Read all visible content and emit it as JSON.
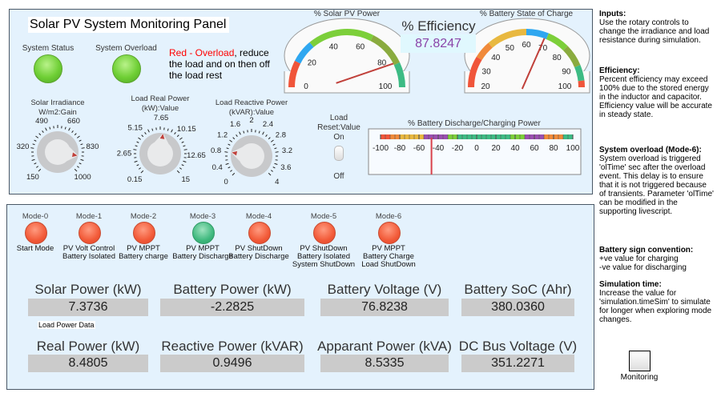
{
  "top_panel": {
    "title": "Solar PV System Monitoring Panel",
    "system_status_label": "System Status",
    "system_overload_label": "System Overload",
    "overload_hint_red": "Red - Overload",
    "overload_hint_rest": ",  reduce the load and on then off the load rest",
    "system_status_color": "green",
    "system_overload_color": "green",
    "knobs": [
      {
        "title": "Solar Irradiance W/m2:Gain",
        "labels": [
          "150",
          "320",
          "490",
          "660",
          "830",
          "1000"
        ],
        "min": 150,
        "max": 1000,
        "value": 890
      },
      {
        "title": "Load Real Power (kW):Value",
        "labels": [
          "0.15",
          "2.65",
          "5.15",
          "7.65",
          "10.15",
          "12.65",
          "15"
        ],
        "min": 0.15,
        "max": 15,
        "value": 8.0
      },
      {
        "title": "Load Reactive Power (kVAR):Value",
        "labels": [
          "0",
          "0.4",
          "0.8",
          "1.2",
          "1.6",
          "2",
          "2.4",
          "2.8",
          "3.2",
          "3.6",
          "4"
        ],
        "min": 0,
        "max": 4,
        "value": 0.82
      }
    ],
    "toggle": {
      "title": "Load Reset:Value",
      "on_label": "On",
      "off_label": "Off",
      "state": "off"
    },
    "efficiency": {
      "label": "% Efficiency",
      "value": "87.8247"
    },
    "solar_gauge": {
      "title": "% Solar PV Power",
      "labels": [
        "0",
        "20",
        "40",
        "60",
        "80",
        "100"
      ],
      "min": 0,
      "max": 100,
      "value": 85,
      "bands": [
        [
          0,
          15,
          "#f0553a"
        ],
        [
          15,
          28,
          "#2fa7f0"
        ],
        [
          28,
          65,
          "#7ccf3a"
        ],
        [
          65,
          86,
          "#8aab3f"
        ],
        [
          86,
          100,
          "#3dbb84"
        ]
      ]
    },
    "soc_gauge": {
      "title": "% Battery State of Charge",
      "labels": [
        "20",
        "30",
        "40",
        "50",
        "60",
        "70",
        "80",
        "90",
        "100"
      ],
      "min": 20,
      "max": 100,
      "value": 69,
      "bands": [
        [
          20,
          34,
          "#f0553a"
        ],
        [
          34,
          42,
          "#f08a3a"
        ],
        [
          42,
          60,
          "#e8b840"
        ],
        [
          60,
          70,
          "#2fa7f0"
        ],
        [
          70,
          80,
          "#7ccf3a"
        ],
        [
          80,
          90,
          "#8aab3f"
        ],
        [
          90,
          97,
          "#3dbb84"
        ],
        [
          97,
          100,
          "#f0553a"
        ]
      ]
    },
    "battery_bar": {
      "title": "% Battery Discharge/Charging Power",
      "labels": [
        "-100",
        "-80",
        "-60",
        "-40",
        "-20",
        "0",
        "20",
        "40",
        "60",
        "80",
        "100"
      ],
      "min": -100,
      "max": 100,
      "value": -47,
      "bands": [
        [
          -100,
          -90,
          "#f0553a"
        ],
        [
          -90,
          -80,
          "#f08a3a"
        ],
        [
          -80,
          -55,
          "#e8b840"
        ],
        [
          -55,
          -30,
          "#9a4fb0"
        ],
        [
          -30,
          -20,
          "#7ccf3a"
        ],
        [
          -20,
          35,
          "#3dbb84"
        ],
        [
          35,
          50,
          "#7ccf3a"
        ],
        [
          50,
          70,
          "#9a4fb0"
        ],
        [
          70,
          90,
          "#f08a3a"
        ],
        [
          90,
          100,
          "#3dbb84"
        ]
      ]
    }
  },
  "modes": [
    {
      "name": "Mode-0",
      "desc": "Start Mode",
      "color": "red"
    },
    {
      "name": "Mode-1",
      "desc": "PV Volt Control\nBattery Isolated",
      "color": "red"
    },
    {
      "name": "Mode-2",
      "desc": "PV MPPT\nBattery charge",
      "color": "red"
    },
    {
      "name": "Mode-3",
      "desc": "PV MPPT\nBattery Discharge",
      "color": "teal"
    },
    {
      "name": "Mode-4",
      "desc": "PV ShutDown\nBattery Discharge",
      "color": "red"
    },
    {
      "name": "Mode-5",
      "desc": "PV ShutDown\nBattery Isolated\nSystem ShutDown",
      "color": "red"
    },
    {
      "name": "Mode-6",
      "desc": "PV MPPT\nBattery Charge\nLoad ShutDown",
      "color": "red"
    }
  ],
  "displays": [
    {
      "label": "Solar Power (kW)",
      "value": "7.3736"
    },
    {
      "label": "Battery Power (kW)",
      "value": "-2.2825"
    },
    {
      "label": "Battery Voltage (V)",
      "value": "76.8238"
    },
    {
      "label": "Battery SoC (Ahr)",
      "value": "380.0360"
    },
    {
      "label": "Real Power (kW)",
      "value": "8.4805"
    },
    {
      "label": "Reactive Power (kVAR)",
      "value": "0.9496"
    },
    {
      "label": "Apparant Power (kVA)",
      "value": "8.5335"
    },
    {
      "label": "DC Bus Voltage (V)",
      "value": "351.2271"
    }
  ],
  "load_power_data_label": "Load Power Data",
  "notes": [
    {
      "title": "Inputs:",
      "body": "Use the rotary controls to change the irradiance and load resistance during simulation."
    },
    {
      "title": "Efficiency:",
      "body": "Percent efficiency may exceed 100% due to the stored energy in the inductor and capacitor. Efficiency value will be accurate in steady state."
    },
    {
      "title": "System overload (Mode-6):",
      "body": "System overload is triggered 'olTime' sec after the overload event. This delay is to ensure that it is not triggered because of transients.  Parameter 'olTime' can be modified in the supporting livescript."
    },
    {
      "title": "Battery sign convention:",
      "body": "+ve value for charging\n-ve value for discharging"
    },
    {
      "title": "Simulation time:",
      "body": "Increase the value for 'simulation.timeSim' to simulate for longer when exploring mode changes."
    }
  ],
  "monitoring_block_label": "Monitoring"
}
